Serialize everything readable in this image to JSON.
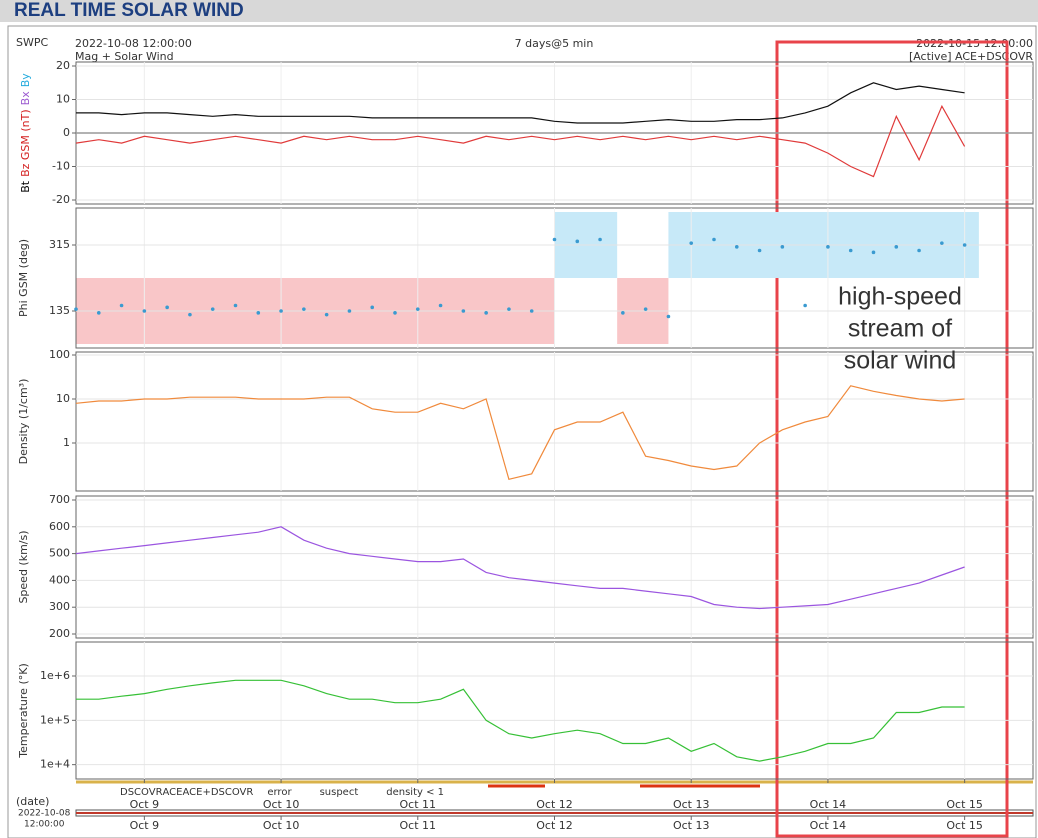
{
  "header": {
    "title": "REAL TIME SOLAR WIND",
    "org": "SWPC",
    "start": "2022-10-08 12:00:00",
    "subtitle": "Mag + Solar Wind",
    "span": "7 days@5 min",
    "end": "2022-10-15 12:00:00",
    "source": "[Active] ACE+DSCOVR"
  },
  "chart_data": {
    "type": "multi-panel",
    "x": [
      "2022-10-08 12:00",
      "2022-10-08 16:00",
      "2022-10-08 20:00",
      "2022-10-09 00:00",
      "2022-10-09 04:00",
      "2022-10-09 08:00",
      "2022-10-09 12:00",
      "2022-10-09 16:00",
      "2022-10-09 20:00",
      "2022-10-10 00:00",
      "2022-10-10 04:00",
      "2022-10-10 08:00",
      "2022-10-10 12:00",
      "2022-10-10 16:00",
      "2022-10-10 20:00",
      "2022-10-11 00:00",
      "2022-10-11 04:00",
      "2022-10-11 08:00",
      "2022-10-11 12:00",
      "2022-10-11 16:00",
      "2022-10-11 20:00",
      "2022-10-12 00:00",
      "2022-10-12 04:00",
      "2022-10-12 08:00",
      "2022-10-12 12:00",
      "2022-10-12 16:00",
      "2022-10-12 20:00",
      "2022-10-13 00:00",
      "2022-10-13 04:00",
      "2022-10-13 08:00",
      "2022-10-13 12:00",
      "2022-10-13 16:00",
      "2022-10-13 20:00",
      "2022-10-14 00:00",
      "2022-10-14 04:00",
      "2022-10-14 08:00",
      "2022-10-14 12:00",
      "2022-10-14 16:00",
      "2022-10-14 20:00",
      "2022-10-15 00:00",
      "2022-10-15 04:00",
      "2022-10-15 08:00",
      "2022-10-15 12:00"
    ],
    "xlim": [
      "2022-10-08 12:00",
      "2022-10-15 12:00"
    ],
    "xticks": [
      {
        "value": "2022-10-09 00:00",
        "label": "Oct 9"
      },
      {
        "value": "2022-10-10 00:00",
        "label": "Oct 10"
      },
      {
        "value": "2022-10-11 00:00",
        "label": "Oct 11"
      },
      {
        "value": "2022-10-12 00:00",
        "label": "Oct 12"
      },
      {
        "value": "2022-10-13 00:00",
        "label": "Oct 13"
      },
      {
        "value": "2022-10-14 00:00",
        "label": "Oct 14"
      },
      {
        "value": "2022-10-15 00:00",
        "label": "Oct 15"
      }
    ],
    "panels": [
      {
        "type": "line",
        "ylabel_parts": [
          {
            "text": "Bt",
            "color": "#000000"
          },
          {
            "text": "Bz GSM (nT)",
            "color": "#d42020"
          },
          {
            "text": "Bx",
            "color": "#9b59d0"
          },
          {
            "text": "By",
            "color": "#22aadd"
          }
        ],
        "ylim": [
          -20,
          20
        ],
        "yticks": [
          -20,
          -10,
          0,
          10,
          20
        ],
        "log": false,
        "series": [
          {
            "color": "#111111",
            "values": [
              6,
              6,
              5.5,
              6,
              6,
              5.5,
              5,
              5.5,
              5,
              5,
              5,
              5,
              5,
              4.5,
              4.5,
              4.5,
              4.5,
              4.5,
              4.5,
              4.5,
              4.5,
              3.5,
              3,
              3,
              3,
              3.5,
              4,
              3.5,
              3.5,
              4,
              4,
              4.5,
              6,
              8,
              12,
              15,
              13,
              14,
              13,
              12,
              null,
              null,
              null
            ]
          },
          {
            "color": "#e03a3a",
            "values": [
              -3,
              -2,
              -3,
              -1,
              -2,
              -3,
              -2,
              -1,
              -2,
              -3,
              -1,
              -2,
              -1,
              -2,
              -2,
              -1,
              -2,
              -3,
              -1,
              -2,
              -1,
              -2,
              -1,
              -2,
              -1,
              -2,
              -1,
              -2,
              -1,
              -2,
              -1,
              -2,
              -3,
              -6,
              -10,
              -13,
              5,
              -8,
              8,
              -4,
              null,
              null,
              null
            ]
          }
        ]
      },
      {
        "type": "scatter",
        "ylabel": "Phi GSM (deg)",
        "ylabel_color": "#22aadd",
        "ylim": [
          45,
          405
        ],
        "yticks": [
          135,
          315
        ],
        "log": false,
        "bands": [
          {
            "x0": "2022-10-08 12:00",
            "x1": "2022-10-12 00:00",
            "y0": 45,
            "y1": 225,
            "color": "#f9c6c8"
          },
          {
            "x0": "2022-10-12 11:00",
            "x1": "2022-10-12 20:00",
            "y0": 45,
            "y1": 225,
            "color": "#f9c6c8"
          },
          {
            "x0": "2022-10-12 00:00",
            "x1": "2022-10-12 11:00",
            "y0": 225,
            "y1": 405,
            "color": "#c7e9f8"
          },
          {
            "x0": "2022-10-12 20:00",
            "x1": "2022-10-15 02:30",
            "y0": 225,
            "y1": 405,
            "color": "#c7e9f8"
          }
        ],
        "series": [
          {
            "color": "#3a9ad0",
            "values": [
              140,
              130,
              150,
              135,
              145,
              125,
              140,
              150,
              130,
              135,
              140,
              125,
              135,
              145,
              130,
              140,
              150,
              135,
              130,
              140,
              135,
              330,
              325,
              330,
              130,
              140,
              120,
              320,
              330,
              310,
              300,
              310,
              150,
              310,
              300,
              295,
              310,
              300,
              320,
              315,
              null,
              null,
              null
            ]
          }
        ]
      },
      {
        "type": "line",
        "ylabel": "Density (1/cm³)",
        "ylabel_color": "#ee7f2d",
        "ylim": [
          0.1,
          100
        ],
        "yticks": [
          1,
          10,
          100
        ],
        "log": true,
        "series": [
          {
            "color": "#f08a3c",
            "values": [
              8,
              9,
              9,
              10,
              10,
              11,
              11,
              11,
              10,
              10,
              10,
              11,
              11,
              6,
              5,
              5,
              8,
              6,
              10,
              0.15,
              0.2,
              2,
              3,
              3,
              5,
              0.5,
              0.4,
              0.3,
              0.25,
              0.3,
              1,
              2,
              3,
              4,
              20,
              15,
              12,
              10,
              9,
              10,
              null,
              null,
              null
            ]
          }
        ]
      },
      {
        "type": "line",
        "ylabel": "Speed (km/s)",
        "ylabel_color": "#8e44d8",
        "ylim": [
          200,
          700
        ],
        "yticks": [
          200,
          300,
          400,
          500,
          600,
          700
        ],
        "log": false,
        "series": [
          {
            "color": "#9b55e0",
            "values": [
              500,
              510,
              520,
              530,
              540,
              550,
              560,
              570,
              580,
              600,
              550,
              520,
              500,
              490,
              480,
              470,
              470,
              480,
              430,
              410,
              400,
              390,
              380,
              370,
              370,
              360,
              350,
              340,
              310,
              300,
              295,
              300,
              305,
              310,
              330,
              350,
              370,
              390,
              420,
              450,
              null,
              null,
              null
            ]
          }
        ]
      },
      {
        "type": "line",
        "ylabel": "Temperature (°K)",
        "ylabel_color": "#2ca02c",
        "ylim": [
          5000,
          5000000
        ],
        "yticks": [
          {
            "value": 10000,
            "label": "1e+4"
          },
          {
            "value": 100000,
            "label": "1e+5"
          },
          {
            "value": 1000000,
            "label": "1e+6"
          }
        ],
        "log": true,
        "series": [
          {
            "color": "#36c036",
            "values": [
              300000,
              300000,
              350000,
              400000,
              500000,
              600000,
              700000,
              800000,
              800000,
              800000,
              600000,
              400000,
              300000,
              300000,
              250000,
              250000,
              300000,
              500000,
              100000,
              50000,
              40000,
              50000,
              60000,
              50000,
              30000,
              30000,
              40000,
              20000,
              30000,
              15000,
              12000,
              15000,
              20000,
              30000,
              30000,
              40000,
              150000,
              150000,
              200000,
              200000,
              null,
              null,
              null
            ]
          }
        ]
      }
    ]
  },
  "status_legend": [
    {
      "text": "DSCOVR",
      "color": "#1a1acc"
    },
    {
      "text": "ACE",
      "color": "#22aa22"
    },
    {
      "text": "ACE+DSCOVR",
      "color": "#dd22dd"
    },
    {
      "text": "error",
      "color": "#dd2222"
    },
    {
      "text": "suspect",
      "color": "#e6b800"
    },
    {
      "text": "density < 1",
      "color": "#ee7f2d"
    }
  ],
  "date_axis": {
    "label": "(date)",
    "start_date": "2022-10-08",
    "start_time": "12:00:00"
  },
  "annotation": {
    "lines": [
      "high-speed",
      "stream of",
      "solar wind"
    ]
  }
}
